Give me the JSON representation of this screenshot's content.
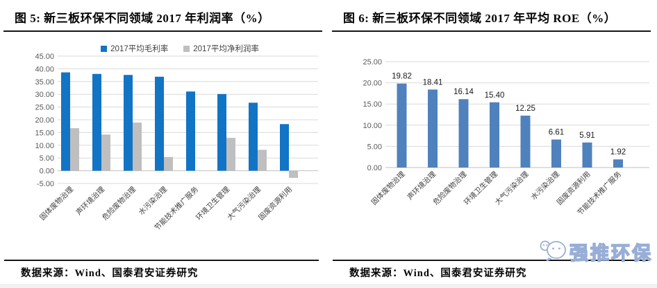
{
  "left_panel": {
    "title": "图 5:  新三板环保不同领域 2017 年利润率（%）",
    "source": "数据来源：Wind、国泰君安证券研究"
  },
  "right_panel": {
    "title": "图 6:  新三板环保不同领域 2017 年平均 ROE（%）",
    "source": "数据来源：Wind、国泰君安证券研究",
    "watermark": "强推环保"
  },
  "chart_data": [
    {
      "type": "bar",
      "title": "新三板环保不同领域2017年利润率（%）",
      "categories": [
        "固体废物治理",
        "声环境治理",
        "危险废物治理",
        "水污染治理",
        "节能技术推广服务",
        "环境卫生管理",
        "大气污染治理",
        "固废资源利用"
      ],
      "series": [
        {
          "name": "2017平均毛利率",
          "color": "#1274C5",
          "values": [
            38.6,
            38.0,
            37.6,
            36.9,
            31.1,
            30.1,
            26.7,
            18.3
          ]
        },
        {
          "name": "2017平均净利润率",
          "color": "#BFBFBF",
          "values": [
            16.7,
            14.2,
            18.9,
            5.4,
            0.0,
            12.9,
            8.2,
            -2.8
          ]
        }
      ],
      "ylim": [
        -5,
        45
      ],
      "ytick_step": 5,
      "ytick_format": "0.00",
      "grid": true,
      "legend_position": "top"
    },
    {
      "type": "bar",
      "title": "新三板环保不同领域2017年平均ROE（%）",
      "categories": [
        "固体废物治理",
        "声环境治理",
        "危险废物治理",
        "环境卫生管理",
        "大气污染治理",
        "水污染治理",
        "固废资源利用",
        "节能技术推广服务"
      ],
      "values": [
        19.82,
        18.41,
        16.14,
        15.4,
        12.25,
        6.61,
        5.91,
        1.92
      ],
      "data_labels": [
        "19.82",
        "18.41",
        "16.14",
        "15.40",
        "12.25",
        "6.61",
        "5.91",
        "1.92"
      ],
      "color": "#4F81BD",
      "ylim": [
        0,
        25
      ],
      "ytick_step": 5,
      "ytick_format": "0.00",
      "grid": true,
      "legend_position": "none"
    }
  ]
}
